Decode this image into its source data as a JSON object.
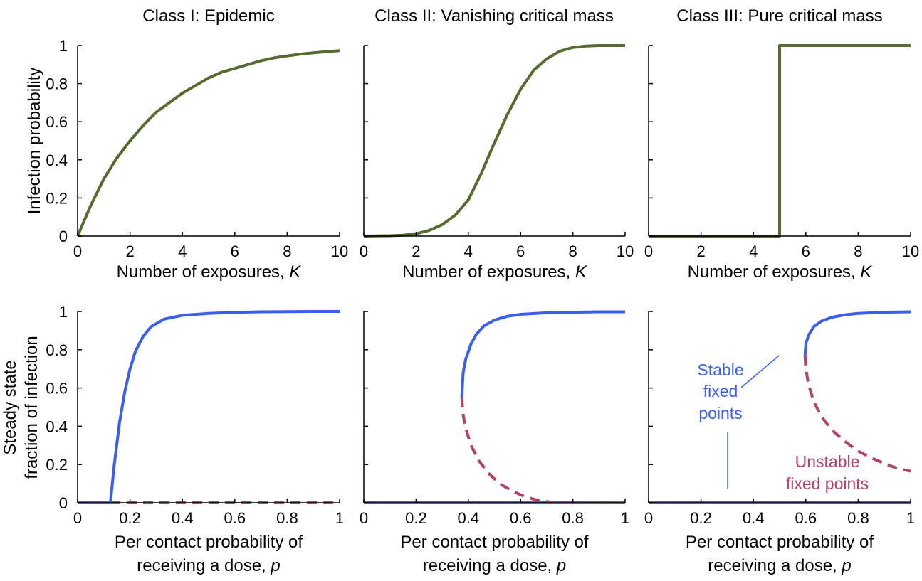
{
  "figure": {
    "top_ylabel": "Infection probability",
    "bottom_ylabel_line1": "Steady state",
    "bottom_ylabel_line2": "fraction of infection",
    "colors": {
      "threshold": "#556b2f",
      "stable": "#3a5ff0",
      "unstable": "#b3416a",
      "axis": "#000000"
    }
  },
  "chart_data": [
    {
      "id": "class1-top",
      "type": "line",
      "title": "Class I: Epidemic",
      "xlabel": "Number of exposures, ",
      "xlabel_italic": "K",
      "xlim": [
        0,
        10
      ],
      "ylim": [
        0,
        1
      ],
      "xticks": [
        0,
        2,
        4,
        6,
        8,
        10
      ],
      "xtick_labels": [
        "0",
        "2",
        "4",
        "6",
        "8",
        "10"
      ],
      "yticks": [
        0,
        0.2,
        0.4,
        0.6,
        0.8,
        1
      ],
      "ytick_labels": [
        "0",
        "0.2",
        "0.4",
        "0.6",
        "0.8",
        "1"
      ],
      "series": [
        {
          "name": "infection probability",
          "style": "solid",
          "color": "#556b2f",
          "x": [
            0,
            0.5,
            1,
            1.5,
            2,
            2.5,
            3,
            3.5,
            4,
            4.5,
            5,
            5.5,
            6,
            6.5,
            7,
            7.5,
            8,
            8.5,
            9,
            9.5,
            10
          ],
          "y": [
            0,
            0.16,
            0.3,
            0.41,
            0.5,
            0.58,
            0.65,
            0.7,
            0.75,
            0.79,
            0.83,
            0.86,
            0.88,
            0.9,
            0.92,
            0.935,
            0.945,
            0.955,
            0.962,
            0.968,
            0.973
          ]
        }
      ]
    },
    {
      "id": "class2-top",
      "type": "line",
      "title": "Class II: Vanishing critical mass",
      "xlabel": "Number of exposures, ",
      "xlabel_italic": "K",
      "xlim": [
        0,
        10
      ],
      "ylim": [
        0,
        1
      ],
      "xticks": [
        0,
        2,
        4,
        6,
        8,
        10
      ],
      "xtick_labels": [
        "0",
        "2",
        "4",
        "6",
        "8",
        "10"
      ],
      "yticks": [
        0,
        0.2,
        0.4,
        0.6,
        0.8,
        1
      ],
      "ytick_labels": [
        "",
        "",
        "",
        "",
        "",
        ""
      ],
      "series": [
        {
          "name": "infection probability",
          "style": "solid",
          "color": "#556b2f",
          "x": [
            0,
            1,
            1.5,
            2,
            2.5,
            3,
            3.5,
            4,
            4.5,
            5,
            5.5,
            6,
            6.5,
            7,
            7.5,
            8,
            8.5,
            9,
            9.5,
            10
          ],
          "y": [
            0,
            0.002,
            0.005,
            0.012,
            0.03,
            0.06,
            0.11,
            0.19,
            0.33,
            0.49,
            0.64,
            0.77,
            0.87,
            0.93,
            0.97,
            0.99,
            0.997,
            1,
            1,
            1
          ]
        }
      ]
    },
    {
      "id": "class3-top",
      "type": "line",
      "title": "Class III: Pure critical mass",
      "xlabel": "Number of exposures, ",
      "xlabel_italic": "K",
      "xlim": [
        0,
        10
      ],
      "ylim": [
        0,
        1
      ],
      "xticks": [
        0,
        2,
        4,
        6,
        8,
        10
      ],
      "xtick_labels": [
        "0",
        "2",
        "4",
        "6",
        "8",
        "10"
      ],
      "yticks": [
        0,
        0.2,
        0.4,
        0.6,
        0.8,
        1
      ],
      "ytick_labels": [
        "",
        "",
        "",
        "",
        "",
        ""
      ],
      "series": [
        {
          "name": "infection probability",
          "style": "solid",
          "color": "#556b2f",
          "x": [
            0,
            5,
            5,
            10
          ],
          "y": [
            0,
            0,
            1,
            1
          ]
        }
      ]
    },
    {
      "id": "class1-bottom",
      "type": "line",
      "title": "",
      "xlabel": "Per contact probability of",
      "xlabel_line2": "receiving a dose, ",
      "xlabel_italic": "p",
      "xlim": [
        0,
        1
      ],
      "ylim": [
        0,
        1
      ],
      "xticks": [
        0,
        0.2,
        0.4,
        0.6,
        0.8,
        1
      ],
      "xtick_labels": [
        "0",
        "0.2",
        "0.4",
        "0.6",
        "0.8",
        "1"
      ],
      "yticks": [
        0,
        0.2,
        0.4,
        0.6,
        0.8,
        1
      ],
      "ytick_labels": [
        "0",
        "0.2",
        "0.4",
        "0.6",
        "0.8",
        "1"
      ],
      "series": [
        {
          "name": "stable zero",
          "style": "solid",
          "color": "#3a5ff0",
          "x": [
            0,
            0.125
          ],
          "y": [
            0,
            0
          ]
        },
        {
          "name": "stable upper",
          "style": "solid",
          "color": "#3a5ff0",
          "x": [
            0.125,
            0.14,
            0.16,
            0.18,
            0.2,
            0.22,
            0.25,
            0.28,
            0.33,
            0.4,
            0.5,
            0.6,
            0.7,
            0.8,
            0.9,
            1
          ],
          "y": [
            0,
            0.2,
            0.42,
            0.58,
            0.7,
            0.79,
            0.87,
            0.92,
            0.96,
            0.98,
            0.99,
            0.995,
            0.998,
            0.999,
            1,
            1
          ]
        },
        {
          "name": "unstable",
          "style": "dashed",
          "color": "#b3416a",
          "x": [
            0.125,
            1
          ],
          "y": [
            0,
            0
          ]
        }
      ]
    },
    {
      "id": "class2-bottom",
      "type": "line",
      "title": "",
      "xlabel": "Per contact probability of",
      "xlabel_line2": "receiving a dose, ",
      "xlabel_italic": "p",
      "xlim": [
        0,
        1
      ],
      "ylim": [
        0,
        1
      ],
      "xticks": [
        0,
        0.2,
        0.4,
        0.6,
        0.8,
        1
      ],
      "xtick_labels": [
        "0",
        "0.2",
        "0.4",
        "0.6",
        "0.8",
        "1"
      ],
      "yticks": [
        0,
        0.2,
        0.4,
        0.6,
        0.8,
        1
      ],
      "ytick_labels": [
        "",
        "",
        "",
        "",
        "",
        ""
      ],
      "series": [
        {
          "name": "stable zero",
          "style": "solid",
          "color": "#3a5ff0",
          "x": [
            0,
            1
          ],
          "y": [
            0,
            0
          ]
        },
        {
          "name": "stable upper",
          "style": "solid",
          "color": "#3a5ff0",
          "x": [
            0.375,
            0.38,
            0.39,
            0.41,
            0.43,
            0.46,
            0.5,
            0.55,
            0.6,
            0.7,
            0.8,
            0.9,
            1
          ],
          "y": [
            0.55,
            0.68,
            0.75,
            0.83,
            0.88,
            0.925,
            0.955,
            0.975,
            0.985,
            0.993,
            0.996,
            0.998,
            0.998
          ]
        },
        {
          "name": "unstable",
          "style": "dashed",
          "color": "#b3416a",
          "x": [
            0.375,
            0.38,
            0.39,
            0.41,
            0.44,
            0.48,
            0.52,
            0.57,
            0.62,
            0.67,
            0.72,
            0.8,
            0.9,
            1
          ],
          "y": [
            0.55,
            0.46,
            0.39,
            0.3,
            0.22,
            0.15,
            0.1,
            0.06,
            0.03,
            0.012,
            0.003,
            0,
            0,
            0
          ]
        }
      ]
    },
    {
      "id": "class3-bottom",
      "type": "line",
      "title": "",
      "xlabel": "Per contact probability of",
      "xlabel_line2": "receiving a dose, ",
      "xlabel_italic": "p",
      "xlim": [
        0,
        1
      ],
      "ylim": [
        0,
        1
      ],
      "xticks": [
        0,
        0.2,
        0.4,
        0.6,
        0.8,
        1
      ],
      "xtick_labels": [
        "0",
        "0.2",
        "0.4",
        "0.6",
        "0.8",
        "1"
      ],
      "yticks": [
        0,
        0.2,
        0.4,
        0.6,
        0.8,
        1
      ],
      "ytick_labels": [
        "",
        "",
        "",
        "",
        "",
        ""
      ],
      "series": [
        {
          "name": "stable zero",
          "style": "solid",
          "color": "#3a5ff0",
          "x": [
            0,
            1
          ],
          "y": [
            0,
            0
          ]
        },
        {
          "name": "stable upper",
          "style": "solid",
          "color": "#3a5ff0",
          "x": [
            0.597,
            0.6,
            0.61,
            0.63,
            0.66,
            0.7,
            0.75,
            0.8,
            0.9,
            1
          ],
          "y": [
            0.77,
            0.83,
            0.875,
            0.92,
            0.95,
            0.97,
            0.983,
            0.99,
            0.996,
            0.998
          ]
        },
        {
          "name": "unstable",
          "style": "dashed",
          "color": "#b3416a",
          "x": [
            0.597,
            0.6,
            0.61,
            0.63,
            0.66,
            0.7,
            0.75,
            0.8,
            0.85,
            0.9,
            0.95,
            1
          ],
          "y": [
            0.77,
            0.7,
            0.62,
            0.53,
            0.45,
            0.38,
            0.32,
            0.27,
            0.235,
            0.205,
            0.18,
            0.165
          ]
        }
      ],
      "annotations": [
        {
          "text_lines": [
            "Stable",
            "fixed",
            "points"
          ],
          "color": "#3a5ff0"
        },
        {
          "text_lines": [
            "Unstable",
            "fixed points"
          ],
          "color": "#b3416a"
        }
      ]
    }
  ]
}
